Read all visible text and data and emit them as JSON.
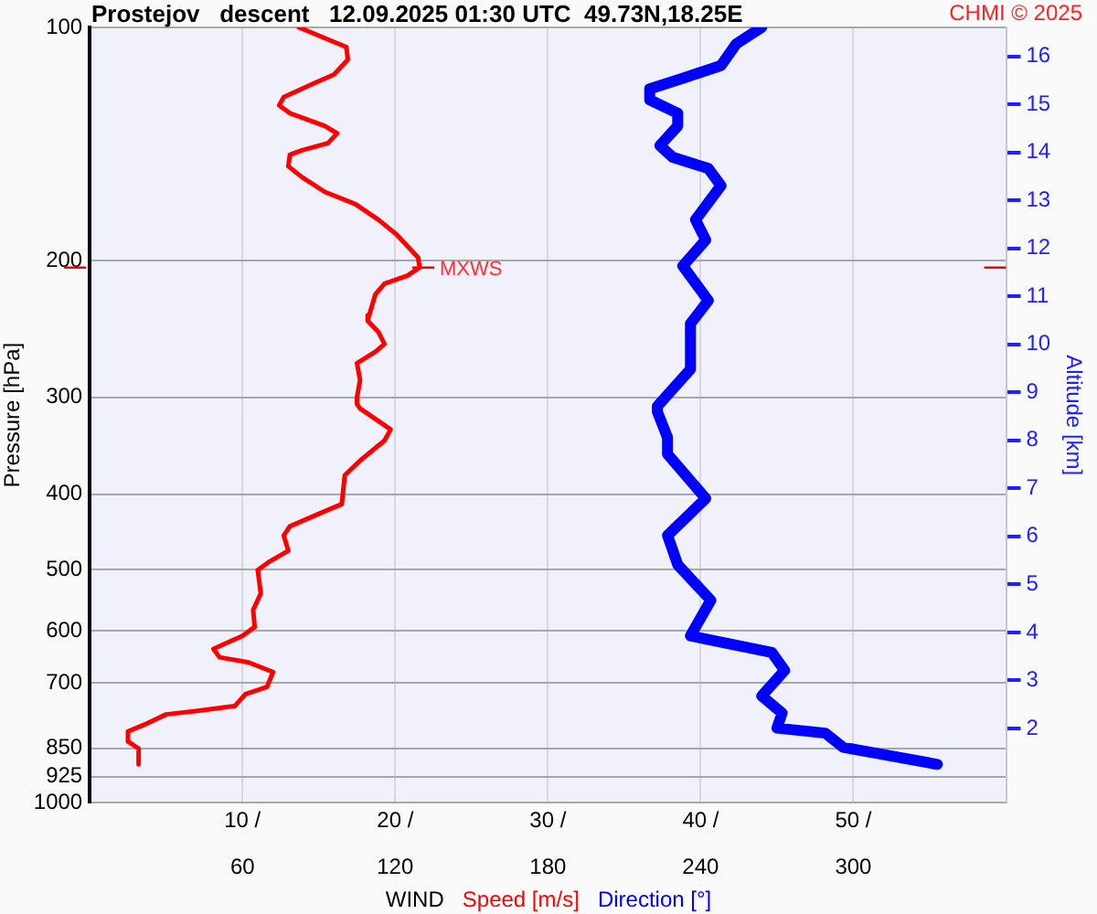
{
  "chart_data": {
    "type": "line",
    "title": "Prostejov   descent   12.09.2025 01:30 UTC  49.73N,18.25E",
    "xlabel": "WIND",
    "ylabel": "Pressure [hPa]",
    "y2label": "Altitude [km]",
    "legend": "bottom",
    "grid": true,
    "annotations": [
      "CHMI © 2025",
      {
        "text": "MXWS",
        "x": 21.6,
        "y": 204
      }
    ],
    "xlim": [
      0,
      60
    ],
    "xticks": [
      {
        "value": 10,
        "label": "10 /"
      },
      {
        "value": 20,
        "label": "20 /"
      },
      {
        "value": 30,
        "label": "30 /"
      },
      {
        "value": 40,
        "label": "40 /"
      },
      {
        "value": 50,
        "label": "50 /"
      }
    ],
    "x2lim": [
      0,
      360
    ],
    "x2ticks": [
      60,
      120,
      180,
      240,
      300
    ],
    "log": "y",
    "ylim": [
      1000,
      100
    ],
    "yticks": [
      100,
      200,
      300,
      400,
      500,
      600,
      700,
      850,
      925,
      1000
    ],
    "y2lim": [
      0.45,
      16.6
    ],
    "y2ticks": [
      2,
      3,
      4,
      5,
      6,
      7,
      8,
      9,
      10,
      11,
      12,
      13,
      14,
      15,
      16
    ],
    "series": [
      {
        "name": "Speed [m/s]",
        "color": "#ff0000",
        "x": [
          13.7,
          16.8,
          16.9,
          16.0,
          14.7,
          12.7,
          12.4,
          13.1,
          15.4,
          16.2,
          15.6,
          13.9,
          13.1,
          13.0,
          13.9,
          15.4,
          17.4,
          18.9,
          20.1,
          21.5,
          21.6,
          20.8,
          19.3,
          18.7,
          18.3,
          18.2,
          18.9,
          19.3,
          18.7,
          17.5,
          17.7,
          17.5,
          17.5,
          17.7,
          19.7,
          19.3,
          17.7,
          16.7,
          16.5,
          15.6,
          13.1,
          12.7,
          13.0,
          11.8,
          11.0,
          11.2,
          10.7,
          10.8,
          10.0,
          8.1,
          8.5,
          10.4,
          12.0,
          11.6,
          10.2,
          9.5,
          7.3,
          5.0,
          3.5,
          2.5,
          2.5,
          3.2,
          3.2
        ],
        "values": [
          100,
          106,
          110,
          115,
          118,
          123,
          126,
          129,
          134,
          137,
          141,
          144,
          146,
          151,
          156,
          163,
          169,
          177,
          185,
          198,
          204,
          209,
          214,
          221,
          235,
          239,
          247,
          256,
          262,
          271,
          285,
          300,
          306,
          310,
          330,
          341,
          362,
          378,
          412,
          419,
          440,
          452,
          473,
          488,
          501,
          537,
          564,
          593,
          609,
          633,
          649,
          659,
          678,
          709,
          724,
          750,
          760,
          769,
          794,
          809,
          833,
          851,
          892
        ]
      },
      {
        "name": "Direction [°]",
        "color": "#0000ff",
        "axis": "x2",
        "x": [
          264,
          254,
          248,
          234,
          220,
          220,
          231,
          231,
          224,
          229,
          243,
          248,
          238,
          242,
          233,
          243,
          236,
          236,
          223,
          223,
          227,
          227,
          242,
          227,
          231,
          244,
          236,
          268,
          273,
          264,
          272,
          270,
          289,
          296,
          333
        ],
        "values": [
          100,
          105,
          112,
          116,
          120,
          124,
          129,
          134,
          142,
          147,
          152,
          160,
          177,
          188,
          203,
          225,
          241,
          276,
          308,
          313,
          338,
          355,
          405,
          452,
          493,
          548,
          609,
          640,
          675,
          728,
          766,
          801,
          813,
          848,
          892
        ]
      }
    ]
  }
}
